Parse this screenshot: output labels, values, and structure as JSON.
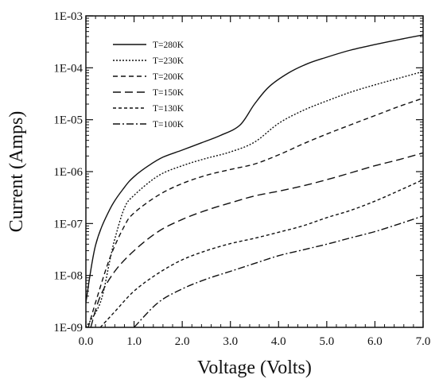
{
  "chart_data": {
    "type": "line",
    "title": "",
    "xlabel": "Voltage (Volts)",
    "ylabel": "Current (Amps)",
    "xlim": [
      0,
      7
    ],
    "ylim": [
      1e-09,
      0.001
    ],
    "yscale": "log",
    "grid": false,
    "legend_position": "top-left",
    "x_ticks": [
      {
        "value": 0,
        "label": "0.0"
      },
      {
        "value": 1,
        "label": "1.0"
      },
      {
        "value": 2,
        "label": "2.0"
      },
      {
        "value": 3,
        "label": "3.0"
      },
      {
        "value": 4,
        "label": "4.0"
      },
      {
        "value": 5,
        "label": "5.0"
      },
      {
        "value": 6,
        "label": "6.0"
      },
      {
        "value": 7,
        "label": "7.0"
      }
    ],
    "y_ticks": [
      {
        "value": 1e-09,
        "label": "1E-09"
      },
      {
        "value": 1e-08,
        "label": "1E-08"
      },
      {
        "value": 1e-07,
        "label": "1E-07"
      },
      {
        "value": 1e-06,
        "label": "1E-06"
      },
      {
        "value": 1e-05,
        "label": "1E-05"
      },
      {
        "value": 0.0001,
        "label": "1E-04"
      },
      {
        "value": 0.001,
        "label": "1E-03"
      }
    ],
    "series": [
      {
        "name": "T=280K",
        "dash": "solid",
        "x": [
          0,
          0.2,
          0.5,
          0.8,
          1.0,
          1.3,
          1.6,
          2.0,
          2.4,
          2.8,
          3.2,
          3.5,
          3.8,
          4.2,
          4.6,
          5.0,
          5.5,
          6.0,
          6.5,
          7.0
        ],
        "y": [
          3e-09,
          3.8e-08,
          1.9e-07,
          5e-07,
          8e-07,
          1.3e-06,
          1.9e-06,
          2.6e-06,
          3.6e-06,
          5e-06,
          7.9e-06,
          2e-05,
          4.3e-05,
          7.9e-05,
          0.00012,
          0.00016,
          0.00022,
          0.00028,
          0.00035,
          0.00043
        ]
      },
      {
        "name": "T=230K",
        "dash": "dotted",
        "x": [
          0,
          0.3,
          0.5,
          0.6,
          0.8,
          1.0,
          1.5,
          2.0,
          2.5,
          3.0,
          3.5,
          4.0,
          4.5,
          5.0,
          5.5,
          6.0,
          6.5,
          7.0
        ],
        "y": [
          1e-09,
          3e-09,
          2e-08,
          5e-08,
          2e-07,
          3.5e-07,
          8.3e-07,
          1.3e-06,
          1.8e-06,
          2.4e-06,
          3.7e-06,
          8.5e-06,
          1.5e-05,
          2.3e-05,
          3.4e-05,
          4.7e-05,
          6.3e-05,
          8.5e-05
        ]
      },
      {
        "name": "T=200K",
        "dash": "dashed",
        "x": [
          0.05,
          0.2,
          0.5,
          0.8,
          1.0,
          1.5,
          2.0,
          2.5,
          3.0,
          3.5,
          4.0,
          4.5,
          5.0,
          5.5,
          6.0,
          6.5,
          7.0
        ],
        "y": [
          1e-09,
          3e-09,
          2.2e-08,
          9e-08,
          1.6e-07,
          3.5e-07,
          5.9e-07,
          8.5e-07,
          1.1e-06,
          1.4e-06,
          2.1e-06,
          3.4e-06,
          5.3e-06,
          8e-06,
          1.2e-05,
          1.8e-05,
          2.6e-05
        ]
      },
      {
        "name": "T=150K",
        "dash": "long-dash",
        "x": [
          0.1,
          0.3,
          0.6,
          1.0,
          1.5,
          2.0,
          2.5,
          3.0,
          3.5,
          4.0,
          4.5,
          5.0,
          5.5,
          6.0,
          6.5,
          7.0
        ],
        "y": [
          1e-09,
          4e-09,
          1.2e-08,
          3e-08,
          7e-08,
          1.2e-07,
          1.8e-07,
          2.5e-07,
          3.4e-07,
          4.2e-07,
          5.3e-07,
          7e-07,
          9.5e-07,
          1.3e-06,
          1.7e-06,
          2.3e-06
        ]
      },
      {
        "name": "T=130K",
        "dash": "short-dash",
        "x": [
          0.3,
          0.6,
          1.0,
          1.5,
          2.0,
          2.5,
          3.0,
          3.5,
          4.0,
          4.5,
          5.0,
          5.5,
          6.0,
          6.5,
          7.0
        ],
        "y": [
          1e-09,
          2e-09,
          5e-09,
          1.1e-08,
          2e-08,
          3e-08,
          4.1e-08,
          5.2e-08,
          6.8e-08,
          9e-08,
          1.3e-07,
          1.8e-07,
          2.7e-07,
          4.3e-07,
          7e-07
        ]
      },
      {
        "name": "T=100K",
        "dash": "dash-dot",
        "x": [
          1.0,
          1.5,
          2.0,
          2.5,
          3.0,
          3.5,
          4.0,
          4.5,
          5.0,
          5.5,
          6.0,
          6.5,
          7.0
        ],
        "y": [
          1e-09,
          3e-09,
          5.5e-09,
          8.5e-09,
          1.2e-08,
          1.7e-08,
          2.4e-08,
          3.1e-08,
          4e-08,
          5.3e-08,
          7e-08,
          9.8e-08,
          1.4e-07
        ]
      }
    ]
  }
}
